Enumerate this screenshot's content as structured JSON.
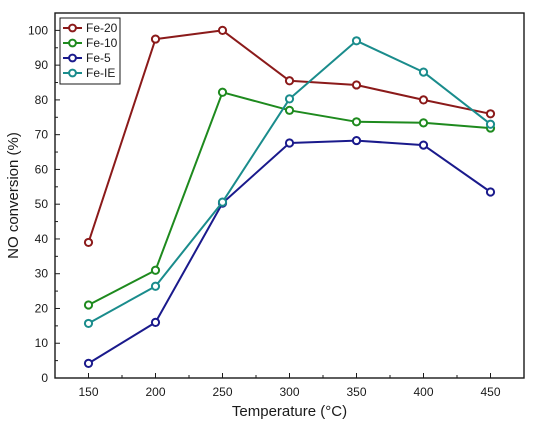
{
  "chart_data": {
    "type": "line",
    "xlabel": "Temperature (°C)",
    "ylabel": "NO conversion (%)",
    "xlim": [
      125,
      475
    ],
    "ylim": [
      0,
      105
    ],
    "x_ticks": [
      150,
      200,
      250,
      300,
      350,
      400,
      450
    ],
    "y_ticks": [
      0,
      10,
      20,
      30,
      40,
      50,
      60,
      70,
      80,
      90,
      100
    ],
    "x": [
      150,
      200,
      250,
      300,
      350,
      400,
      450
    ],
    "legend_position": "top-left",
    "grid": false,
    "series": [
      {
        "name": "Fe-20",
        "color": "#8b1a1a",
        "values": [
          39,
          97.5,
          100,
          85.5,
          84.3,
          80,
          76
        ]
      },
      {
        "name": "Fe-10",
        "color": "#1e8a1e",
        "values": [
          21,
          31,
          82.2,
          77,
          73.7,
          73.4,
          71.9
        ]
      },
      {
        "name": "Fe-5",
        "color": "#1a1a8c",
        "values": [
          4.2,
          16,
          50.3,
          67.6,
          68.3,
          67,
          53.5
        ]
      },
      {
        "name": "Fe-IE",
        "color": "#1a8c8c",
        "values": [
          15.7,
          26.4,
          50.6,
          80.3,
          97,
          88,
          73
        ]
      }
    ]
  }
}
